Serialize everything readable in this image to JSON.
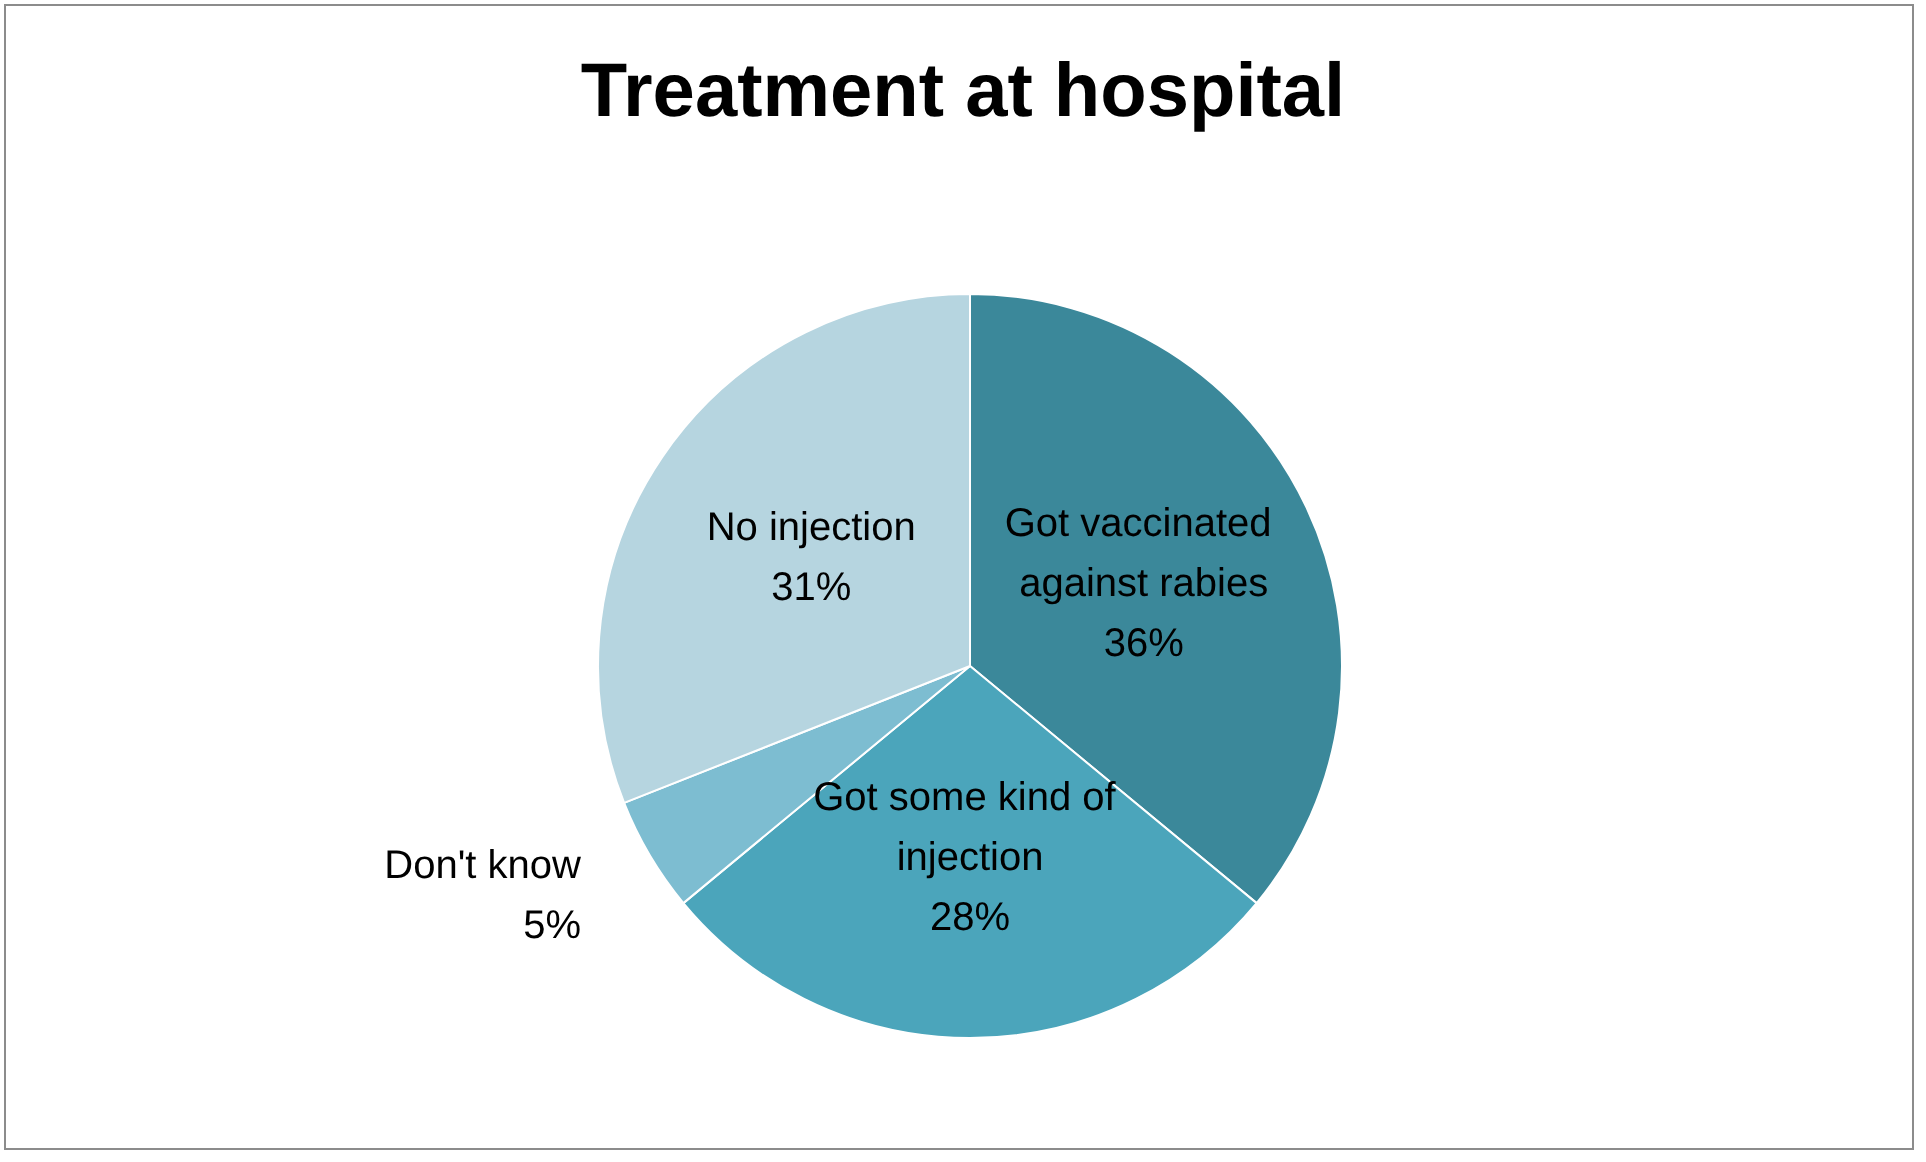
{
  "chart_data": {
    "type": "pie",
    "title": "Treatment at hospital",
    "categories": [
      "Got vaccinated against rabies",
      "Got some kind of injection",
      "Don't know",
      "No injection"
    ],
    "values": [
      36,
      28,
      5,
      31
    ],
    "value_labels": [
      "36%",
      "28%",
      "5%",
      "31%"
    ],
    "colors": [
      "#3b889a",
      "#4ba5bb",
      "#7dbdd1",
      "#b6d5e0"
    ],
    "legend": false
  }
}
